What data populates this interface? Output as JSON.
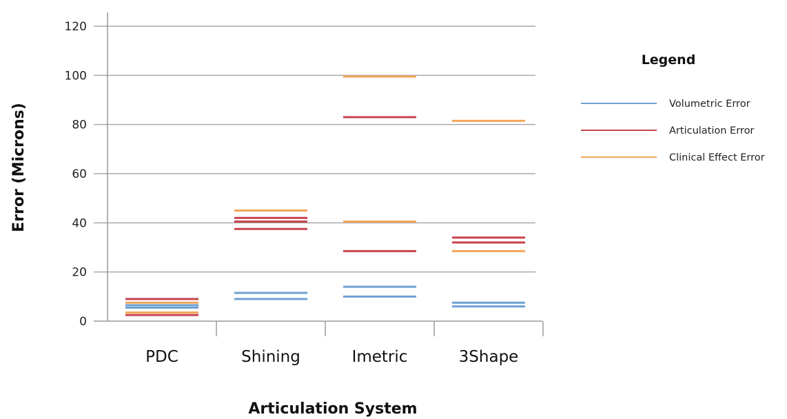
{
  "chart_data": {
    "type": "scatter",
    "marker": "horizontal-line",
    "xlabel": "Articulation System",
    "ylabel": "Error (Microns)",
    "ylim": [
      0,
      120
    ],
    "yticks": [
      0,
      20,
      40,
      60,
      80,
      100,
      120
    ],
    "grid": true,
    "legend_title": "Legend",
    "legend_position": "right",
    "categories": [
      "PDC",
      "Shining",
      "Imetric",
      "3Shape"
    ],
    "series": [
      {
        "name": "Volumetric Error",
        "color": "#6fa0d2",
        "points": [
          {
            "category": "PDC",
            "values": [
              5.5,
              6.5
            ]
          },
          {
            "category": "Shining",
            "values": [
              9,
              11.5
            ]
          },
          {
            "category": "Imetric",
            "values": [
              10,
              14
            ]
          },
          {
            "category": "3Shape",
            "values": [
              6,
              7.5
            ]
          }
        ]
      },
      {
        "name": "Articulation Error",
        "color": "#c8434e",
        "points": [
          {
            "category": "PDC",
            "values": [
              2.5,
              9
            ]
          },
          {
            "category": "Shining",
            "values": [
              37.5,
              40.5,
              42
            ]
          },
          {
            "category": "Imetric",
            "values": [
              28.5,
              83
            ]
          },
          {
            "category": "3Shape",
            "values": [
              32,
              34
            ]
          }
        ]
      },
      {
        "name": "Clinical Effect Error",
        "color": "#f2a65a",
        "points": [
          {
            "category": "PDC",
            "values": [
              3.5,
              7.5
            ]
          },
          {
            "category": "Shining",
            "values": [
              45
            ]
          },
          {
            "category": "Imetric",
            "values": [
              40.5,
              99.5
            ]
          },
          {
            "category": "3Shape",
            "values": [
              28.5,
              81.5
            ]
          }
        ]
      }
    ]
  }
}
